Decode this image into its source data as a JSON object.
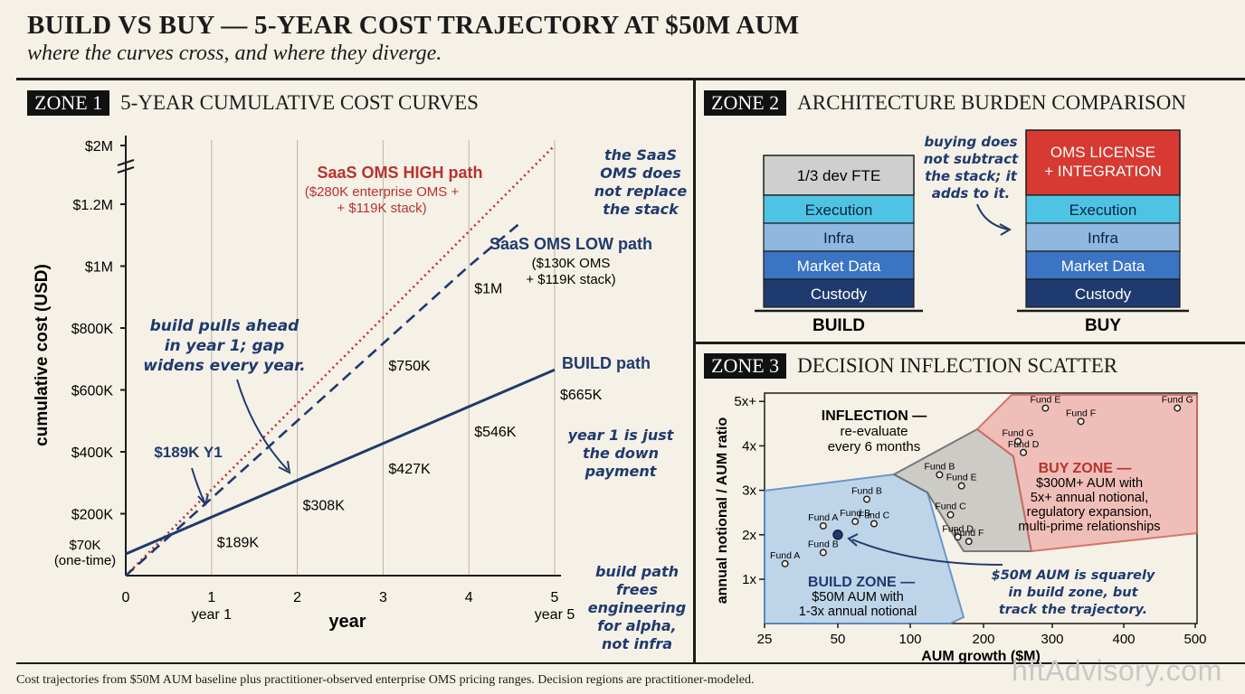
{
  "header": {
    "title": "BUILD VS BUY — 5-YEAR COST TRAJECTORY AT $50M AUM",
    "subtitle": "where the curves cross, and where they diverge."
  },
  "zones": {
    "z1": {
      "tag": "ZONE 1",
      "title": "5-YEAR CUMULATIVE COST CURVES"
    },
    "z2": {
      "tag": "ZONE 2",
      "title": "ARCHITECTURE BURDEN COMPARISON"
    },
    "z3": {
      "tag": "ZONE 3",
      "title": "DECISION INFLECTION SCATTER"
    }
  },
  "footnote": "Cost trajectories from $50M AUM baseline plus practitioner-observed enterprise OMS pricing ranges. Decision regions are practitioner-modeled.",
  "watermark": "hftAdvisory.com",
  "colors": {
    "build": "#1f3a6e",
    "low": "#1f3a6e",
    "high": "#b8322c",
    "ink": "#1b1b1b"
  },
  "chart_data": [
    {
      "type": "line",
      "xlabel": "year",
      "ylabel": "cumulative cost (USD)",
      "x_ticks": [
        {
          "v": 0,
          "label": "0"
        },
        {
          "v": 1,
          "label": "1",
          "sub": "year 1"
        },
        {
          "v": 2,
          "label": "2"
        },
        {
          "v": 3,
          "label": "3"
        },
        {
          "v": 4,
          "label": "4"
        },
        {
          "v": 5,
          "label": "5",
          "sub": "year 5"
        }
      ],
      "y_ticks": [
        {
          "v": 200,
          "label": "$200K"
        },
        {
          "v": 400,
          "label": "$400K"
        },
        {
          "v": 600,
          "label": "$600K"
        },
        {
          "v": 800,
          "label": "$800K"
        },
        {
          "v": 1000,
          "label": "$1M"
        },
        {
          "v": 1200,
          "label": "$1.2M"
        },
        {
          "v": 2000,
          "label": "$2M"
        }
      ],
      "y_break": "between $1.2M and $2M",
      "series": [
        {
          "key": "high",
          "name": "SaaS OMS HIGH path",
          "note_line1": "($280K enterprise OMS +",
          "note_line2": "+ $119K stack)",
          "style": "dotted",
          "color": "#b8322c",
          "points": [
            [
              0,
              0
            ],
            [
              5,
              2000
            ]
          ]
        },
        {
          "key": "low",
          "name": "SaaS OMS LOW path",
          "note_line1": "($130K OMS",
          "note_line2": "+ $119K stack)",
          "style": "dashed",
          "color": "#1f3a6e",
          "points": [
            [
              0,
              0
            ],
            [
              1,
              250
            ],
            [
              2,
              500
            ],
            [
              3,
              750
            ],
            [
              4,
              1000
            ],
            [
              4.6,
              1140
            ]
          ],
          "point_labels": [
            {
              "x": 3,
              "y": 750,
              "label": "$750K"
            },
            {
              "x": 4,
              "y": 1000,
              "label": "$1M"
            }
          ]
        },
        {
          "key": "build",
          "name": "BUILD path",
          "style": "solid",
          "color": "#1f3a6e",
          "points": [
            [
              0,
              70
            ],
            [
              1,
              189
            ],
            [
              2,
              308
            ],
            [
              3,
              427
            ],
            [
              4,
              546
            ],
            [
              5,
              665
            ]
          ],
          "point_labels": [
            {
              "x": 1,
              "y": 189,
              "label": "$189K"
            },
            {
              "x": 2,
              "y": 308,
              "label": "$308K"
            },
            {
              "x": 3,
              "y": 427,
              "label": "$427K"
            },
            {
              "x": 4,
              "y": 546,
              "label": "$546K"
            },
            {
              "x": 5,
              "y": 665,
              "label": "$665K"
            }
          ]
        }
      ],
      "start_label": {
        "line1": "$70K",
        "line2": "(one-time)"
      },
      "annotations": {
        "y1_callout": "$189K Y1",
        "pulls_ahead": [
          "build pulls ahead",
          "in year 1; gap",
          "widens every year."
        ],
        "saas_note": [
          "the SaaS",
          "OMS does",
          "not replace",
          "the stack"
        ],
        "down_payment": [
          "year 1 is just",
          "the down",
          "payment"
        ],
        "frees": [
          "build path",
          "frees",
          "engineering",
          "for alpha,",
          "not infra"
        ]
      }
    },
    {
      "type": "table",
      "build_label": "BUILD",
      "buy_label": "BUY",
      "build_layers": [
        "1/3 dev FTE",
        "Execution",
        "Infra",
        "Market Data",
        "Custody"
      ],
      "buy_layers": [
        "OMS LICENSE",
        "+ INTEGRATION",
        "Execution",
        "Infra",
        "Market Data",
        "Custody"
      ],
      "note": [
        "buying does",
        "not subtract",
        "the stack; it",
        "adds to it."
      ]
    },
    {
      "type": "scatter",
      "xlabel": "AUM growth ($M)",
      "ylabel": "annual notional / AUM ratio",
      "x_ticks": [
        "25",
        "50",
        "100",
        "200",
        "300",
        "400",
        "500"
      ],
      "y_ticks": [
        "1x",
        "2x",
        "3x",
        "4x",
        "5x+"
      ],
      "regions": {
        "build": {
          "title": "BUILD ZONE —",
          "l1": "$50M AUM with",
          "l2": "1-3x annual notional"
        },
        "inflection": {
          "title": "INFLECTION —",
          "l1": "re-evaluate",
          "l2": "every 6 months"
        },
        "buy": {
          "title": "BUY ZONE —",
          "l1": "$300M+ AUM with",
          "l2": "5x+ annual notional,",
          "l3": "regulatory expansion,",
          "l4": "multi-prime relationships"
        }
      },
      "points": [
        {
          "label": "Fund A",
          "x": 32,
          "y": 1.35
        },
        {
          "label": "Fund B",
          "x": 45,
          "y": 1.6
        },
        {
          "label": "Fund A",
          "x": 45,
          "y": 2.2
        },
        {
          "label": "Fund B",
          "x": 70,
          "y": 2.8
        },
        {
          "label": "Fund B",
          "x": 62,
          "y": 2.3
        },
        {
          "label": "Fund C",
          "x": 75,
          "y": 2.25
        },
        {
          "label": "Fund B",
          "x": 140,
          "y": 3.35
        },
        {
          "label": "Fund C",
          "x": 155,
          "y": 2.45
        },
        {
          "label": "Fund E",
          "x": 170,
          "y": 3.1
        },
        {
          "label": "Fund D",
          "x": 165,
          "y": 1.95
        },
        {
          "label": "Fund F",
          "x": 180,
          "y": 1.85
        },
        {
          "label": "Fund G",
          "x": 250,
          "y": 4.1
        },
        {
          "label": "Fund D",
          "x": 258,
          "y": 3.85
        },
        {
          "label": "Fund E",
          "x": 290,
          "y": 4.85
        },
        {
          "label": "Fund F",
          "x": 340,
          "y": 4.55
        },
        {
          "label": "Fund G",
          "x": 475,
          "y": 4.85
        }
      ],
      "highlight": {
        "x": 50,
        "y": 2.0
      },
      "highlight_note": [
        "$50M AUM is squarely",
        "in build zone, but",
        "track the trajectory."
      ]
    }
  ]
}
